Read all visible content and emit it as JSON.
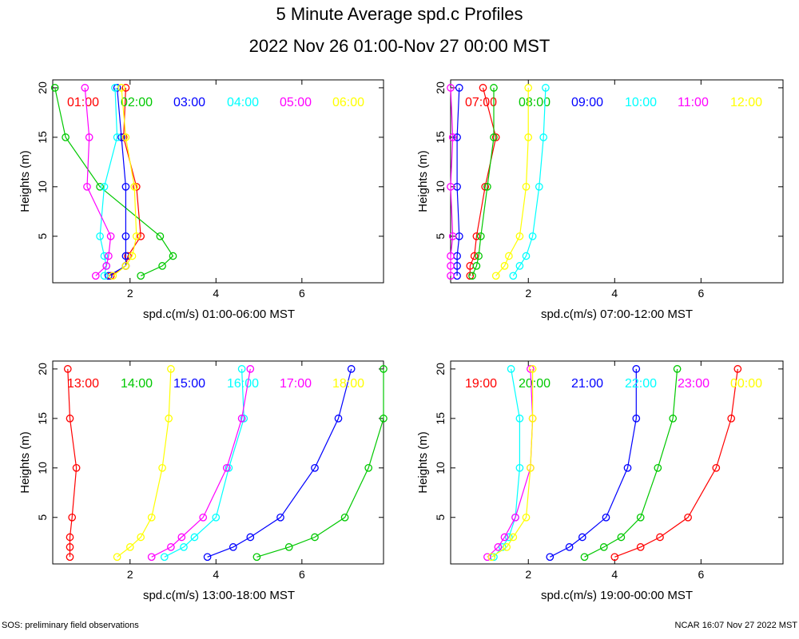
{
  "header": {
    "title": "5 Minute Average spd.c Profiles",
    "subtitle": "2022 Nov 26 01:00-Nov 27 00:00 MST"
  },
  "footer": {
    "left": "SOS: preliminary field observations",
    "right": "NCAR 16:07 Nov 27 2022 MST"
  },
  "colors": [
    "#ff0000",
    "#00c800",
    "#0000ff",
    "#00ffff",
    "#ff00ff",
    "#ffff00"
  ],
  "chart_data": [
    {
      "type": "line",
      "xlabel": "spd.c(m/s) 01:00-06:00 MST",
      "ylabel": "Heights (m)",
      "xlim": [
        0.2,
        7.9
      ],
      "ylim": [
        0.3,
        20.8
      ],
      "xticks": [
        "2",
        "4",
        "6"
      ],
      "yticks": [
        "5",
        "10",
        "15",
        "20"
      ],
      "heights": [
        1,
        2,
        3,
        5,
        10,
        15,
        20
      ],
      "series": [
        {
          "name": "01:00",
          "values": [
            1.55,
            1.9,
            1.95,
            2.25,
            2.15,
            1.85,
            1.9
          ]
        },
        {
          "name": "02:00",
          "values": [
            2.25,
            2.75,
            3.0,
            2.7,
            1.3,
            0.5,
            0.25
          ]
        },
        {
          "name": "03:00",
          "values": [
            1.5,
            1.9,
            1.9,
            1.9,
            1.9,
            1.8,
            1.7
          ]
        },
        {
          "name": "04:00",
          "values": [
            1.4,
            1.45,
            1.4,
            1.3,
            1.4,
            1.7,
            1.65
          ]
        },
        {
          "name": "05:00",
          "values": [
            1.2,
            1.45,
            1.5,
            1.55,
            1.0,
            1.05,
            0.95
          ]
        },
        {
          "name": "06:00",
          "values": [
            1.6,
            1.9,
            2.05,
            2.15,
            2.1,
            1.9,
            1.8
          ]
        }
      ]
    },
    {
      "type": "line",
      "xlabel": "spd.c(m/s) 07:00-12:00 MST",
      "ylabel": "Heights (m)",
      "xlim": [
        0.2,
        7.9
      ],
      "ylim": [
        0.3,
        20.8
      ],
      "xticks": [
        "2",
        "4",
        "6"
      ],
      "yticks": [
        "5",
        "10",
        "15",
        "20"
      ],
      "heights": [
        1,
        2,
        3,
        5,
        10,
        15,
        20
      ],
      "series": [
        {
          "name": "07:00",
          "values": [
            0.65,
            0.65,
            0.75,
            0.8,
            1.0,
            1.25,
            0.95
          ]
        },
        {
          "name": "08:00",
          "values": [
            0.7,
            0.8,
            0.85,
            0.9,
            1.05,
            1.2,
            1.2
          ]
        },
        {
          "name": "09:00",
          "values": [
            0.35,
            0.35,
            0.35,
            0.4,
            0.35,
            0.35,
            0.4
          ]
        },
        {
          "name": "10:00",
          "values": [
            1.65,
            1.8,
            1.95,
            2.1,
            2.25,
            2.35,
            2.4
          ]
        },
        {
          "name": "11:00",
          "values": [
            0.2,
            0.2,
            0.2,
            0.25,
            0.2,
            0.25,
            0.2
          ]
        },
        {
          "name": "12:00",
          "values": [
            1.25,
            1.45,
            1.55,
            1.8,
            1.95,
            2.0,
            2.0
          ]
        }
      ]
    },
    {
      "type": "line",
      "xlabel": "spd.c(m/s) 13:00-18:00 MST",
      "ylabel": "Heights (m)",
      "xlim": [
        0.2,
        7.9
      ],
      "ylim": [
        0.3,
        20.8
      ],
      "xticks": [
        "2",
        "4",
        "6"
      ],
      "yticks": [
        "5",
        "10",
        "15",
        "20"
      ],
      "heights": [
        1,
        2,
        3,
        5,
        10,
        15,
        20
      ],
      "series": [
        {
          "name": "13:00",
          "values": [
            0.6,
            0.6,
            0.6,
            0.65,
            0.75,
            0.6,
            0.55
          ]
        },
        {
          "name": "14:00",
          "values": [
            4.95,
            5.7,
            6.3,
            7.0,
            7.55,
            7.9,
            7.9
          ]
        },
        {
          "name": "15:00",
          "values": [
            3.8,
            4.4,
            4.8,
            5.5,
            6.3,
            6.85,
            7.15
          ]
        },
        {
          "name": "16:00",
          "values": [
            2.8,
            3.25,
            3.5,
            4.0,
            4.3,
            4.65,
            4.6
          ]
        },
        {
          "name": "17:00",
          "values": [
            2.5,
            2.95,
            3.2,
            3.7,
            4.25,
            4.6,
            4.8
          ]
        },
        {
          "name": "18:00",
          "values": [
            1.7,
            2.0,
            2.25,
            2.5,
            2.75,
            2.9,
            2.95
          ]
        }
      ]
    },
    {
      "type": "line",
      "xlabel": "spd.c(m/s) 19:00-00:00 MST",
      "ylabel": "Heights (m)",
      "xlim": [
        0.2,
        7.9
      ],
      "ylim": [
        0.3,
        20.8
      ],
      "xticks": [
        "2",
        "4",
        "6"
      ],
      "yticks": [
        "5",
        "10",
        "15",
        "20"
      ],
      "heights": [
        1,
        2,
        3,
        5,
        10,
        15,
        20
      ],
      "series": [
        {
          "name": "19:00",
          "values": [
            4.0,
            4.6,
            5.05,
            5.7,
            6.35,
            6.7,
            6.85
          ]
        },
        {
          "name": "20:00",
          "values": [
            3.3,
            3.75,
            4.15,
            4.6,
            5.0,
            5.35,
            5.45
          ]
        },
        {
          "name": "21:00",
          "values": [
            2.5,
            2.95,
            3.25,
            3.8,
            4.3,
            4.5,
            4.5
          ]
        },
        {
          "name": "22:00",
          "values": [
            1.2,
            1.4,
            1.55,
            1.7,
            1.8,
            1.8,
            1.6
          ]
        },
        {
          "name": "23:00",
          "values": [
            1.05,
            1.3,
            1.45,
            1.7,
            2.05,
            2.1,
            2.05
          ]
        },
        {
          "name": "00:00",
          "values": [
            1.15,
            1.5,
            1.65,
            1.95,
            2.05,
            2.1,
            2.1
          ]
        }
      ]
    }
  ]
}
